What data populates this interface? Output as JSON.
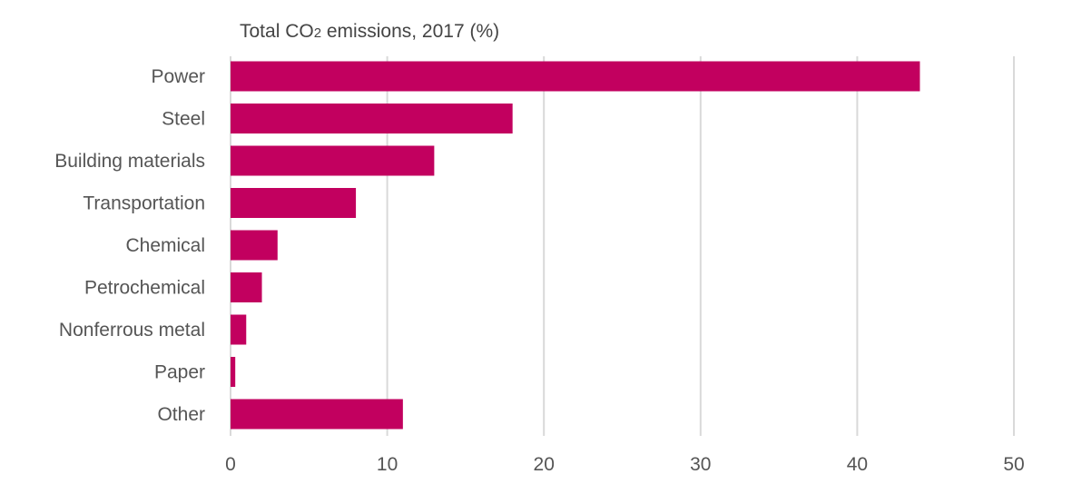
{
  "chart_data": {
    "type": "bar",
    "orientation": "horizontal",
    "title": "Total CO2 emissions, 2017 (%)",
    "title_parts": {
      "before": "Total CO",
      "subscript": "2",
      "after": " emissions, 2017 (%)"
    },
    "categories": [
      "Power",
      "Steel",
      "Building materials",
      "Transportation",
      "Chemical",
      "Petrochemical",
      "Nonferrous metal",
      "Paper",
      "Other"
    ],
    "values": [
      44,
      18,
      13,
      8,
      3,
      2,
      1,
      0.3,
      11
    ],
    "xlim": [
      0,
      50
    ],
    "xticks": [
      0,
      10,
      20,
      30,
      40,
      50
    ],
    "grid": "vertical",
    "legend": "none",
    "bar_color": "#C2005F"
  }
}
